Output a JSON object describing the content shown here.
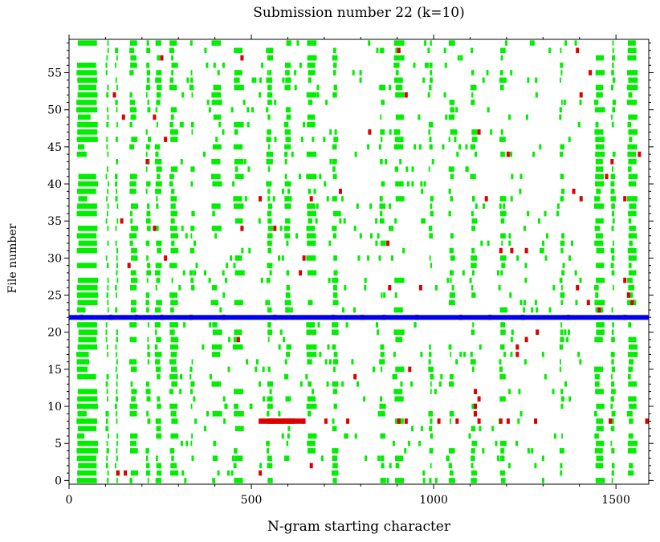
{
  "chart_data": {
    "type": "heatmap",
    "title": "Submission number 22 (k=10)",
    "xlabel": "N-gram starting character",
    "ylabel": "File number",
    "xlim": [
      0,
      1590
    ],
    "ylim": [
      -0.5,
      59.5
    ],
    "x_ticks": [
      0,
      500,
      1000,
      1500
    ],
    "y_ticks": [
      0,
      5,
      10,
      15,
      20,
      25,
      30,
      35,
      40,
      45,
      50,
      55
    ],
    "grid": false,
    "highlight_file": 22,
    "colors": {
      "common": "#00ee00",
      "rare": "#dd0000",
      "highlight": "#0000ee"
    },
    "common_bands": [
      [
        20,
        80
      ],
      [
        100,
        110
      ],
      [
        125,
        135
      ],
      [
        165,
        190
      ],
      [
        210,
        225
      ],
      [
        235,
        255
      ],
      [
        275,
        300
      ],
      [
        330,
        345
      ],
      [
        390,
        420
      ],
      [
        450,
        480
      ],
      [
        540,
        560
      ],
      [
        590,
        610
      ],
      [
        650,
        680
      ],
      [
        720,
        740
      ],
      [
        850,
        870
      ],
      [
        890,
        920
      ],
      [
        985,
        1000
      ],
      [
        1040,
        1060
      ],
      [
        1100,
        1120
      ],
      [
        1180,
        1200
      ],
      [
        1345,
        1360
      ],
      [
        1440,
        1470
      ],
      [
        1485,
        1500
      ],
      [
        1530,
        1560
      ]
    ],
    "rare_points": [
      [
        30,
        22
      ],
      [
        110,
        22
      ],
      [
        180,
        22
      ],
      [
        250,
        22
      ],
      [
        330,
        22
      ],
      [
        420,
        22
      ],
      [
        560,
        22
      ],
      [
        720,
        22
      ],
      [
        800,
        22
      ],
      [
        860,
        22
      ],
      [
        950,
        22
      ],
      [
        1070,
        22
      ],
      [
        1150,
        22
      ],
      [
        1240,
        22
      ],
      [
        1365,
        22
      ],
      [
        1520,
        22
      ],
      [
        520,
        8
      ],
      [
        545,
        8
      ],
      [
        570,
        8
      ],
      [
        595,
        8
      ],
      [
        640,
        8
      ],
      [
        700,
        8
      ],
      [
        760,
        8
      ],
      [
        900,
        8
      ],
      [
        920,
        8
      ],
      [
        1010,
        8
      ],
      [
        1060,
        8
      ],
      [
        1120,
        8
      ],
      [
        1180,
        8
      ],
      [
        1200,
        8
      ],
      [
        1275,
        8
      ],
      [
        1480,
        8
      ],
      [
        1580,
        8
      ],
      [
        120,
        52
      ],
      [
        145,
        49
      ],
      [
        230,
        49
      ],
      [
        260,
        46
      ],
      [
        250,
        57
      ],
      [
        520,
        38
      ],
      [
        660,
        38
      ],
      [
        740,
        39
      ],
      [
        1140,
        38
      ],
      [
        1380,
        39
      ],
      [
        1400,
        38
      ],
      [
        1520,
        38
      ],
      [
        1110,
        12
      ],
      [
        1110,
        10
      ],
      [
        1110,
        9
      ],
      [
        1120,
        11
      ],
      [
        1225,
        18
      ],
      [
        1225,
        17
      ],
      [
        1250,
        19
      ],
      [
        1280,
        20
      ],
      [
        140,
        35
      ],
      [
        230,
        34
      ],
      [
        260,
        30
      ],
      [
        470,
        34
      ],
      [
        560,
        34
      ],
      [
        640,
        30
      ],
      [
        630,
        28
      ],
      [
        1180,
        31
      ],
      [
        1210,
        31
      ],
      [
        1250,
        31
      ],
      [
        1520,
        27
      ],
      [
        1530,
        25
      ],
      [
        1540,
        24
      ],
      [
        1390,
        26
      ],
      [
        1420,
        24
      ],
      [
        1450,
        23
      ],
      [
        1470,
        41
      ],
      [
        1485,
        43
      ],
      [
        1560,
        44
      ],
      [
        160,
        29
      ],
      [
        780,
        14
      ],
      [
        660,
        2
      ],
      [
        520,
        1
      ],
      [
        130,
        1
      ],
      [
        150,
        1
      ],
      [
        210,
        43
      ],
      [
        470,
        57
      ],
      [
        900,
        58
      ],
      [
        920,
        52
      ],
      [
        1120,
        47
      ],
      [
        1200,
        44
      ],
      [
        1390,
        58
      ],
      [
        1400,
        52
      ],
      [
        1425,
        55
      ],
      [
        460,
        19
      ],
      [
        930,
        15
      ],
      [
        820,
        47
      ],
      [
        875,
        26
      ],
      [
        870,
        32
      ],
      [
        960,
        26
      ]
    ]
  }
}
